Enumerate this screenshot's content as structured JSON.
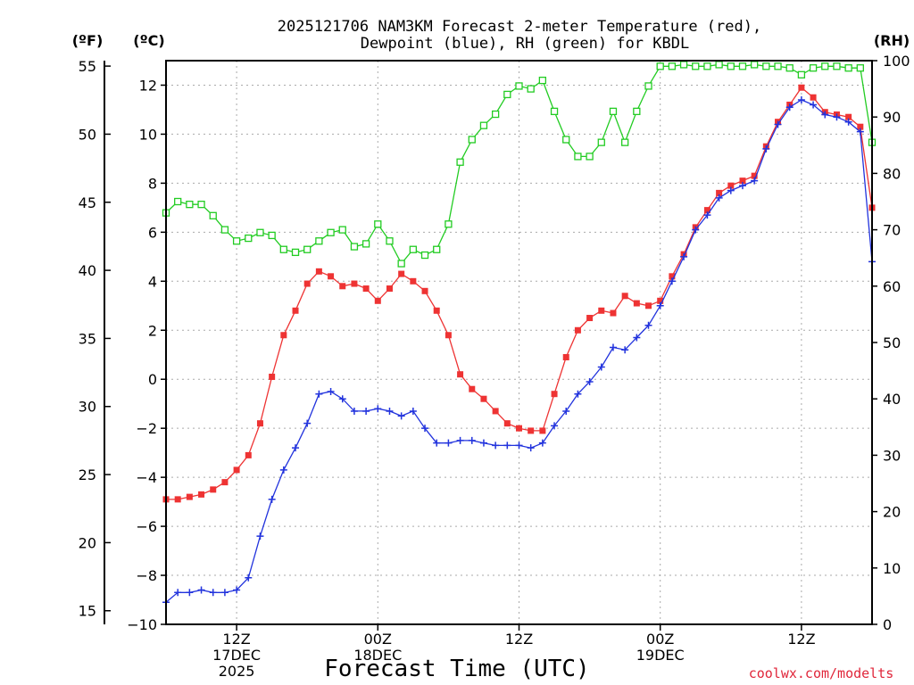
{
  "chart_data": {
    "type": "line",
    "title": "2025121706 NAM3KM Forecast 2-meter Temperature (red),",
    "subtitle": "Dewpoint (blue), RH (green) for KBDL",
    "xlabel": "Forecast Time (UTC)",
    "credit": "coolwx.com/modelts",
    "units": {
      "fahrenheit": "(ºF)",
      "celsius": "(ºC)",
      "rh": "(RH)"
    },
    "x_hours": {
      "start": 6,
      "end": 66
    },
    "c_ylim": [
      -10,
      13
    ],
    "rh_ylim": [
      0,
      100
    ],
    "c_ticks": [
      "12",
      "10",
      "8",
      "6",
      "4",
      "2",
      "0",
      "−2",
      "−4",
      "−6",
      "−8",
      "−10"
    ],
    "f_ticks": [
      "55",
      "50",
      "45",
      "40",
      "35",
      "30",
      "25",
      "20",
      "15"
    ],
    "rh_ticks": [
      "100",
      "90",
      "80",
      "70",
      "60",
      "50",
      "40",
      "30",
      "20",
      "10",
      "0"
    ],
    "x_ticks": [
      {
        "hour": 12,
        "lines": [
          "12Z",
          "17DEC",
          "2025"
        ]
      },
      {
        "hour": 24,
        "lines": [
          "00Z",
          "18DEC"
        ]
      },
      {
        "hour": 36,
        "lines": [
          "12Z"
        ]
      },
      {
        "hour": 48,
        "lines": [
          "00Z",
          "19DEC"
        ]
      },
      {
        "hour": 60,
        "lines": [
          "12Z"
        ]
      }
    ],
    "series": [
      {
        "name": "2-meter Temperature",
        "color": "#ee3333",
        "marker": "filled-square",
        "axis": "celsius",
        "values": [
          -4.9,
          -4.9,
          -4.8,
          -4.7,
          -4.5,
          -4.2,
          -3.7,
          -3.1,
          -1.8,
          0.1,
          1.8,
          2.8,
          3.9,
          4.4,
          4.2,
          3.8,
          3.9,
          3.7,
          3.2,
          3.7,
          4.3,
          4.0,
          3.6,
          2.8,
          1.8,
          0.2,
          -0.4,
          -0.8,
          -1.3,
          -1.8,
          -2.0,
          -2.1,
          -2.1,
          -0.6,
          0.9,
          2.0,
          2.5,
          2.8,
          2.7,
          3.4,
          3.1,
          3.0,
          3.2,
          4.2,
          5.1,
          6.2,
          6.9,
          7.6,
          7.9,
          8.1,
          8.3,
          9.5,
          10.5,
          11.2,
          11.9,
          11.5,
          10.9,
          10.8,
          10.7,
          10.3,
          7.0
        ]
      },
      {
        "name": "Dewpoint",
        "color": "#2233dd",
        "marker": "plus",
        "axis": "celsius",
        "values": [
          -9.1,
          -8.7,
          -8.7,
          -8.6,
          -8.7,
          -8.7,
          -8.6,
          -8.1,
          -6.4,
          -4.9,
          -3.7,
          -2.8,
          -1.8,
          -0.6,
          -0.5,
          -0.8,
          -1.3,
          -1.3,
          -1.2,
          -1.3,
          -1.5,
          -1.3,
          -2.0,
          -2.6,
          -2.6,
          -2.5,
          -2.5,
          -2.6,
          -2.7,
          -2.7,
          -2.7,
          -2.8,
          -2.6,
          -1.9,
          -1.3,
          -0.6,
          -0.1,
          0.5,
          1.3,
          1.2,
          1.7,
          2.2,
          3.0,
          4.0,
          5.0,
          6.1,
          6.7,
          7.4,
          7.7,
          7.9,
          8.1,
          9.4,
          10.4,
          11.1,
          11.4,
          11.2,
          10.8,
          10.7,
          10.5,
          10.1,
          4.8
        ]
      },
      {
        "name": "RH",
        "color": "#22cc22",
        "marker": "open-square",
        "axis": "rh",
        "values": [
          73,
          75,
          74.5,
          74.5,
          72.5,
          70,
          68,
          68.5,
          69.5,
          69,
          66.5,
          66,
          66.5,
          68,
          69.5,
          70,
          67,
          67.5,
          71,
          68,
          64,
          66.5,
          65.5,
          66.5,
          71,
          82,
          86,
          88.5,
          90.5,
          94,
          95.5,
          95,
          96.5,
          91,
          86,
          83,
          83,
          85.5,
          91,
          85.5,
          91,
          95.5,
          99,
          99,
          99.3,
          99,
          99,
          99.3,
          99,
          99,
          99.3,
          99,
          99,
          98.7,
          97.5,
          98.7,
          99,
          99,
          98.7,
          98.7,
          85.5
        ]
      }
    ]
  }
}
